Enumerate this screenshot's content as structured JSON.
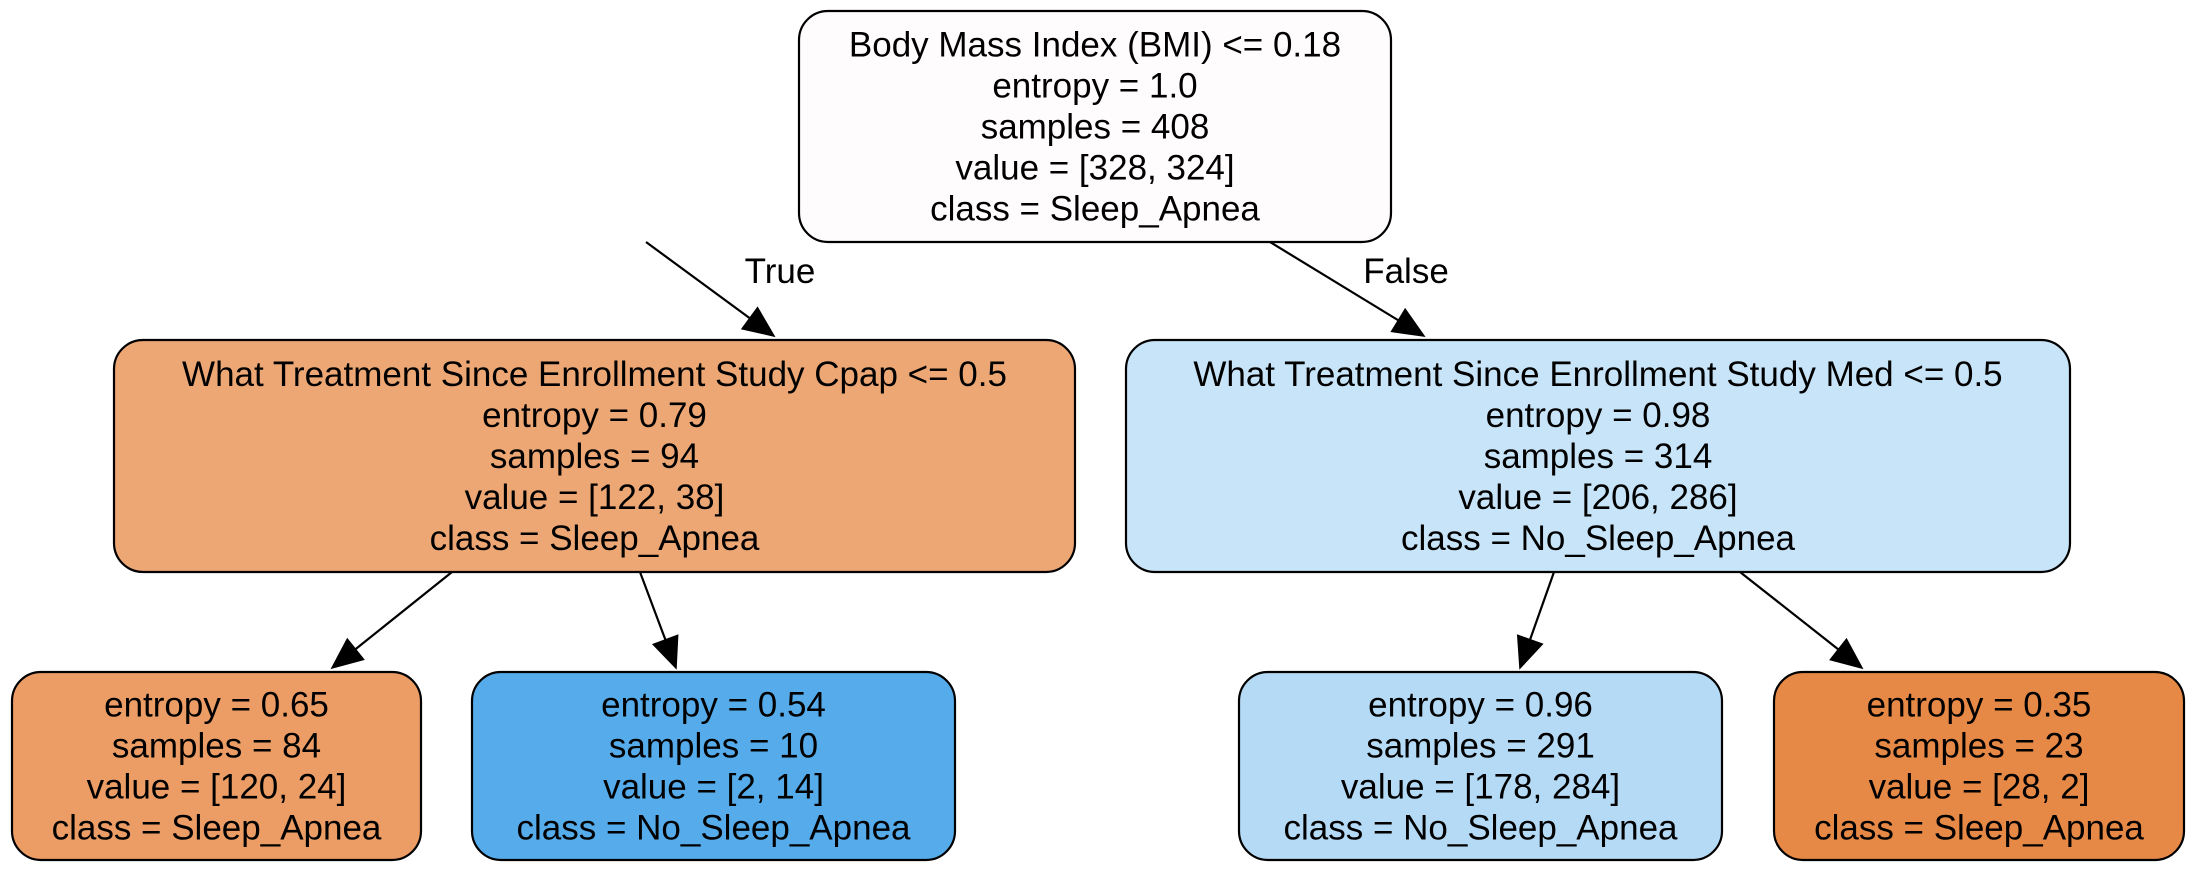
{
  "nodes": [
    {
      "id": "n0",
      "name": "node-root",
      "fill": "#fefcfc",
      "lines": [
        "Body Mass Index (BMI) <= 0.18",
        "entropy = 1.0",
        "samples = 408",
        "value = [328, 324]",
        "class = Sleep_Apnea"
      ]
    },
    {
      "id": "n1",
      "name": "node-cpap-split",
      "fill": "#eca775",
      "lines": [
        "What Treatment Since Enrollment Study Cpap <= 0.5",
        "entropy = 0.79",
        "samples = 94",
        "value = [122, 38]",
        "class = Sleep_Apnea"
      ]
    },
    {
      "id": "n2",
      "name": "node-med-split",
      "fill": "#c8e4f8",
      "lines": [
        "What Treatment Since Enrollment Study Med <= 0.5",
        "entropy = 0.98",
        "samples = 314",
        "value = [206, 286]",
        "class = No_Sleep_Apnea"
      ]
    },
    {
      "id": "n3",
      "name": "leaf-sleep-apnea-84",
      "fill": "#eb9d65",
      "lines": [
        "entropy = 0.65",
        "samples = 84",
        "value = [120, 24]",
        "class = Sleep_Apnea"
      ]
    },
    {
      "id": "n4",
      "name": "leaf-no-sleep-apnea-10",
      "fill": "#56acea",
      "lines": [
        "entropy = 0.54",
        "samples = 10",
        "value = [2, 14]",
        "class = No_Sleep_Apnea"
      ]
    },
    {
      "id": "n5",
      "name": "leaf-no-sleep-apnea-291",
      "fill": "#b5daf6",
      "lines": [
        "entropy = 0.96",
        "samples = 291",
        "value = [178, 284]",
        "class = No_Sleep_Apnea"
      ]
    },
    {
      "id": "n6",
      "name": "leaf-sleep-apnea-23",
      "fill": "#e78946",
      "lines": [
        "entropy = 0.35",
        "samples = 23",
        "value = [28, 2]",
        "class = Sleep_Apnea"
      ]
    }
  ],
  "edges": [
    {
      "from": "n0",
      "to": "n1",
      "label": "True"
    },
    {
      "from": "n0",
      "to": "n2",
      "label": "False"
    },
    {
      "from": "n1",
      "to": "n3",
      "label": ""
    },
    {
      "from": "n1",
      "to": "n4",
      "label": ""
    },
    {
      "from": "n2",
      "to": "n5",
      "label": ""
    },
    {
      "from": "n2",
      "to": "n6",
      "label": ""
    }
  ]
}
